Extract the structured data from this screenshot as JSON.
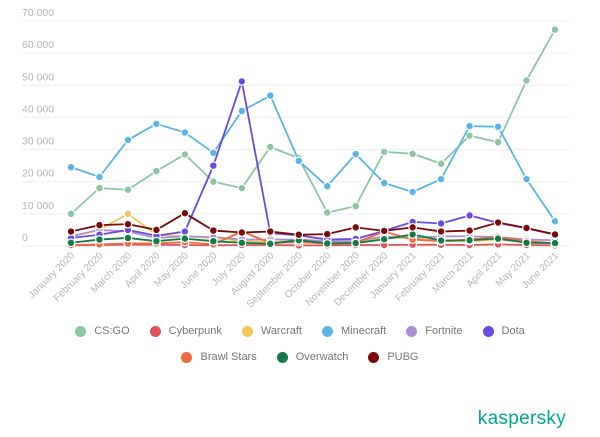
{
  "chart_data": {
    "type": "line",
    "title": "",
    "xlabel": "",
    "ylabel": "",
    "ylim": [
      0,
      70000
    ],
    "y_ticks": [
      0,
      10000,
      20000,
      30000,
      40000,
      50000,
      60000,
      70000
    ],
    "y_tick_labels": [
      "0",
      "10 000",
      "20 000",
      "30 000",
      "40 000",
      "50 000",
      "60 000",
      "70 000"
    ],
    "grid": true,
    "legend_position": "bottom",
    "categories": [
      "January 2020",
      "February 2020",
      "March 2020",
      "April 2020",
      "May 2020",
      "June 2020",
      "July 2020",
      "August 2020",
      "September 2020",
      "October 2020",
      "November 2020",
      "December 2020",
      "January 2021",
      "February 2021",
      "March 2021",
      "April 2021",
      "May 2021",
      "June 2021"
    ],
    "series": [
      {
        "name": "CS:GO",
        "color": "#8cc5a2",
        "values": [
          10000,
          18000,
          17500,
          23300,
          28500,
          20000,
          18000,
          30800,
          27300,
          10400,
          12400,
          29300,
          28700,
          25600,
          34300,
          32300,
          51500,
          67300
        ]
      },
      {
        "name": "Cyberpunk",
        "color": "#e0525a",
        "values": [
          200,
          300,
          400,
          400,
          300,
          200,
          300,
          300,
          200,
          200,
          300,
          300,
          400,
          400,
          300,
          500,
          300,
          200
        ]
      },
      {
        "name": "Warcraft",
        "color": "#f0c75e",
        "values": [
          3000,
          5000,
          10000,
          3500,
          3000,
          2500,
          1500,
          1200,
          1500,
          1000,
          1000,
          2500,
          2500,
          1500,
          1500,
          2000,
          1200,
          800
        ]
      },
      {
        "name": "Minecraft",
        "color": "#5ab4e5",
        "values": [
          24500,
          21500,
          33000,
          38000,
          35300,
          29000,
          42000,
          46800,
          26500,
          18600,
          28600,
          19600,
          16800,
          20800,
          37300,
          37100,
          20800,
          7700
        ]
      },
      {
        "name": "Fortnite",
        "color": "#a98fd0",
        "values": [
          3000,
          5000,
          4500,
          2500,
          3000,
          2800,
          2000,
          2000,
          2000,
          1500,
          1500,
          3000,
          2500,
          3000,
          3000,
          2800,
          2000,
          1800
        ]
      },
      {
        "name": "Dota",
        "color": "#6a4be0",
        "values": [
          2500,
          3500,
          5000,
          3200,
          4500,
          25000,
          51200,
          4000,
          3300,
          2000,
          2200,
          4700,
          7500,
          7000,
          9500,
          7200,
          5500,
          3500
        ]
      },
      {
        "name": "Brawl Stars",
        "color": "#f26a3b",
        "values": [
          300,
          500,
          800,
          800,
          1200,
          500,
          4500,
          1000,
          1200,
          800,
          1000,
          4500,
          2000,
          1500,
          2000,
          2800,
          1500,
          800
        ]
      },
      {
        "name": "Overwatch",
        "color": "#137a48",
        "values": [
          1000,
          2000,
          2500,
          1500,
          2300,
          1500,
          1000,
          700,
          1800,
          800,
          900,
          2100,
          3600,
          1700,
          1800,
          2300,
          1000,
          900
        ]
      },
      {
        "name": "PUBG",
        "color": "#7a0a0a",
        "values": [
          4500,
          6500,
          6800,
          5000,
          10200,
          4800,
          4200,
          4500,
          3500,
          3700,
          5800,
          4700,
          5800,
          4500,
          4800,
          7300,
          5600,
          3600
        ]
      }
    ]
  },
  "brand": "kaspersky"
}
